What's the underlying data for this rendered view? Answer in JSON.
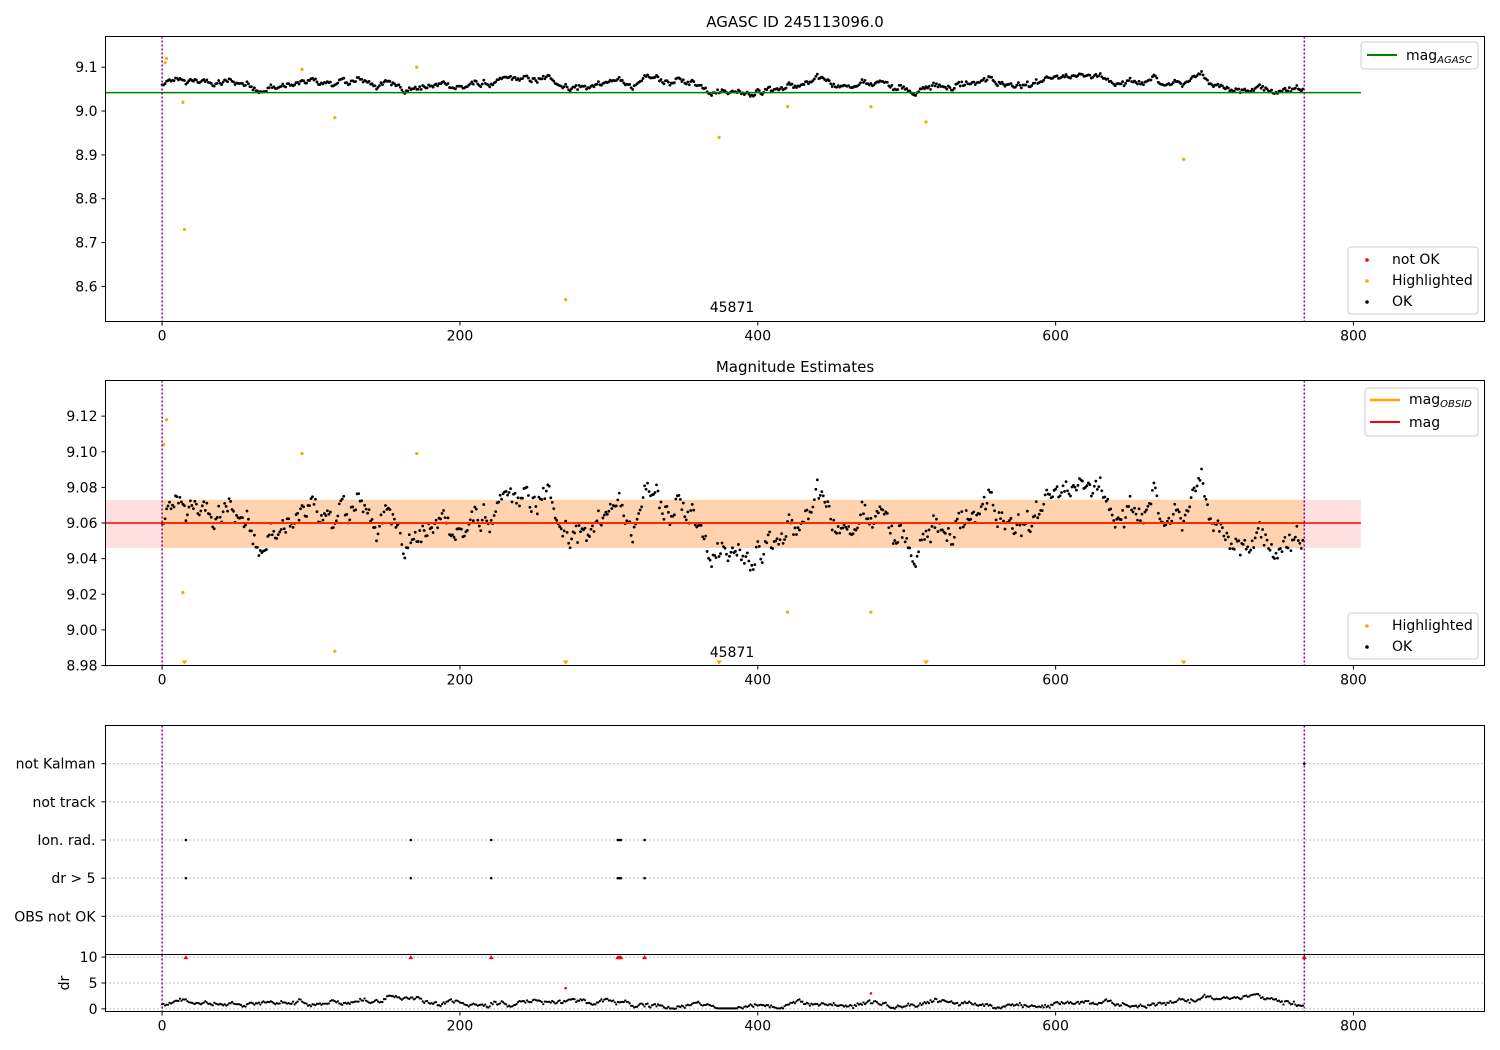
{
  "chart_data": [
    {
      "type": "scatter",
      "title": "AGASC ID 245113096.0",
      "xlim": [
        -38,
        888
      ],
      "ylim": [
        8.52,
        9.17
      ],
      "xticks": [
        0,
        200,
        400,
        600,
        800
      ],
      "yticks": [
        8.6,
        8.7,
        8.8,
        8.9,
        9.0,
        9.1
      ],
      "ytick_labels": [
        "8.6",
        "8.7",
        "8.8",
        "8.9",
        "9.0",
        "9.1"
      ],
      "obsid_boundaries": [
        0,
        767
      ],
      "obsid_label": {
        "text": "45871",
        "x": 383
      },
      "mag_agasc": {
        "value": 9.042,
        "x_range": [
          -38,
          805
        ]
      },
      "legend_upper": {
        "position": "upper right",
        "entries": [
          {
            "label": "mag",
            "sub": "AGASC",
            "color": "#008000"
          }
        ]
      },
      "legend_lower": {
        "position": "lower right",
        "entries": [
          {
            "label": "not OK",
            "color": "#ff0000"
          },
          {
            "label": "Highlighted",
            "color": "#ffa500"
          },
          {
            "label": "OK",
            "color": "#000000"
          }
        ]
      },
      "series": [
        {
          "name": "OK",
          "color": "#000000",
          "x_range": [
            0,
            767
          ],
          "baseline": 9.06,
          "noise": 0.012
        },
        {
          "name": "Highlighted",
          "color": "#ffa500",
          "points": [
            [
              2,
              9.11
            ],
            [
              3,
              9.12
            ],
            [
              14,
              9.02
            ],
            [
              15,
              8.73
            ],
            [
              94,
              9.095
            ],
            [
              116,
              8.985
            ],
            [
              171,
              9.1
            ],
            [
              271,
              8.57
            ],
            [
              374,
              8.94
            ],
            [
              420,
              9.01
            ],
            [
              476,
              9.01
            ],
            [
              513,
              8.975
            ],
            [
              686,
              8.89
            ]
          ]
        }
      ]
    },
    {
      "type": "scatter",
      "title": "Magnitude Estimates",
      "xlim": [
        -38,
        888
      ],
      "ylim": [
        8.98,
        9.14
      ],
      "xticks": [
        0,
        200,
        400,
        600,
        800
      ],
      "yticks": [
        8.98,
        9.0,
        9.02,
        9.04,
        9.06,
        9.08,
        9.1,
        9.12
      ],
      "ytick_labels": [
        "8.98",
        "9.00",
        "9.02",
        "9.04",
        "9.06",
        "9.08",
        "9.10",
        "9.12"
      ],
      "obsid_boundaries": [
        0,
        767
      ],
      "obsid_label": {
        "text": "45871",
        "x": 383
      },
      "mag_obsid": {
        "value": 9.06,
        "band": [
          9.046,
          9.073
        ],
        "x_range": [
          0,
          767
        ],
        "color": "#ffa500"
      },
      "mag": {
        "value": 9.06,
        "band": [
          9.046,
          9.073
        ],
        "x_range": [
          -38,
          805
        ],
        "color": "#ff0000"
      },
      "legend_upper": {
        "position": "upper right",
        "entries": [
          {
            "label": "mag",
            "sub": "OBSID",
            "color": "#ffa500"
          },
          {
            "label": "mag",
            "color": "#ff0000"
          }
        ]
      },
      "legend_lower": {
        "position": "lower right",
        "entries": [
          {
            "label": "Highlighted",
            "color": "#ffa500"
          },
          {
            "label": "OK",
            "color": "#000000"
          }
        ]
      },
      "series": [
        {
          "name": "OK",
          "color": "#000000",
          "x_range": [
            0,
            767
          ],
          "baseline": 9.06,
          "noise": 0.012
        },
        {
          "name": "Highlighted",
          "color": "#ffa500",
          "points": [
            [
              1,
              9.104
            ],
            [
              3,
              9.118
            ],
            [
              14,
              9.021
            ],
            [
              94,
              9.099
            ],
            [
              116,
              8.988
            ],
            [
              171,
              9.099
            ],
            [
              420,
              9.01
            ],
            [
              476,
              9.01
            ]
          ]
        },
        {
          "name": "Highlighted (below range)",
          "color": "#ffa500",
          "marker": "triangle-down",
          "x": [
            15,
            271,
            374,
            513,
            686
          ]
        }
      ]
    },
    {
      "type": "scatter",
      "title": "",
      "xlim": [
        -38,
        888
      ],
      "categories": [
        "not Kalman",
        "not track",
        "Ion. rad.",
        "dr > 5",
        "OBS not OK"
      ],
      "obsid_boundaries": [
        0,
        767
      ],
      "flags": {
        "not Kalman": [
          767
        ],
        "not track": [],
        "Ion. rad.": [
          16,
          167,
          221,
          306,
          307,
          308,
          324
        ],
        "dr > 5": [
          16,
          167,
          221,
          306,
          307,
          308,
          324
        ],
        "OBS not OK": []
      }
    },
    {
      "type": "scatter",
      "title": "",
      "xlim": [
        -38,
        888
      ],
      "ylim": [
        -0.5,
        10.5
      ],
      "ylabel": "dr",
      "xticks": [
        0,
        200,
        400,
        600,
        800
      ],
      "yticks": [
        0,
        5,
        10
      ],
      "ytick_labels": [
        "0",
        "5",
        "10"
      ],
      "obsid_boundaries": [
        0,
        767
      ],
      "series": [
        {
          "name": "dr",
          "color": "#000000",
          "x_range": [
            0,
            767
          ],
          "baseline": 1.2,
          "noise": 0.5
        },
        {
          "name": "dr (clipped)",
          "color": "#ff0000",
          "marker": "triangle-up",
          "points": [
            [
              16,
              10
            ],
            [
              167,
              10
            ],
            [
              221,
              10
            ],
            [
              306,
              10
            ],
            [
              307,
              10
            ],
            [
              308,
              10
            ],
            [
              324,
              10
            ],
            [
              767,
              10
            ]
          ]
        },
        {
          "name": "dr (red)",
          "color": "#ff0000",
          "points": [
            [
              271,
              4
            ],
            [
              476,
              3
            ]
          ]
        }
      ]
    }
  ]
}
